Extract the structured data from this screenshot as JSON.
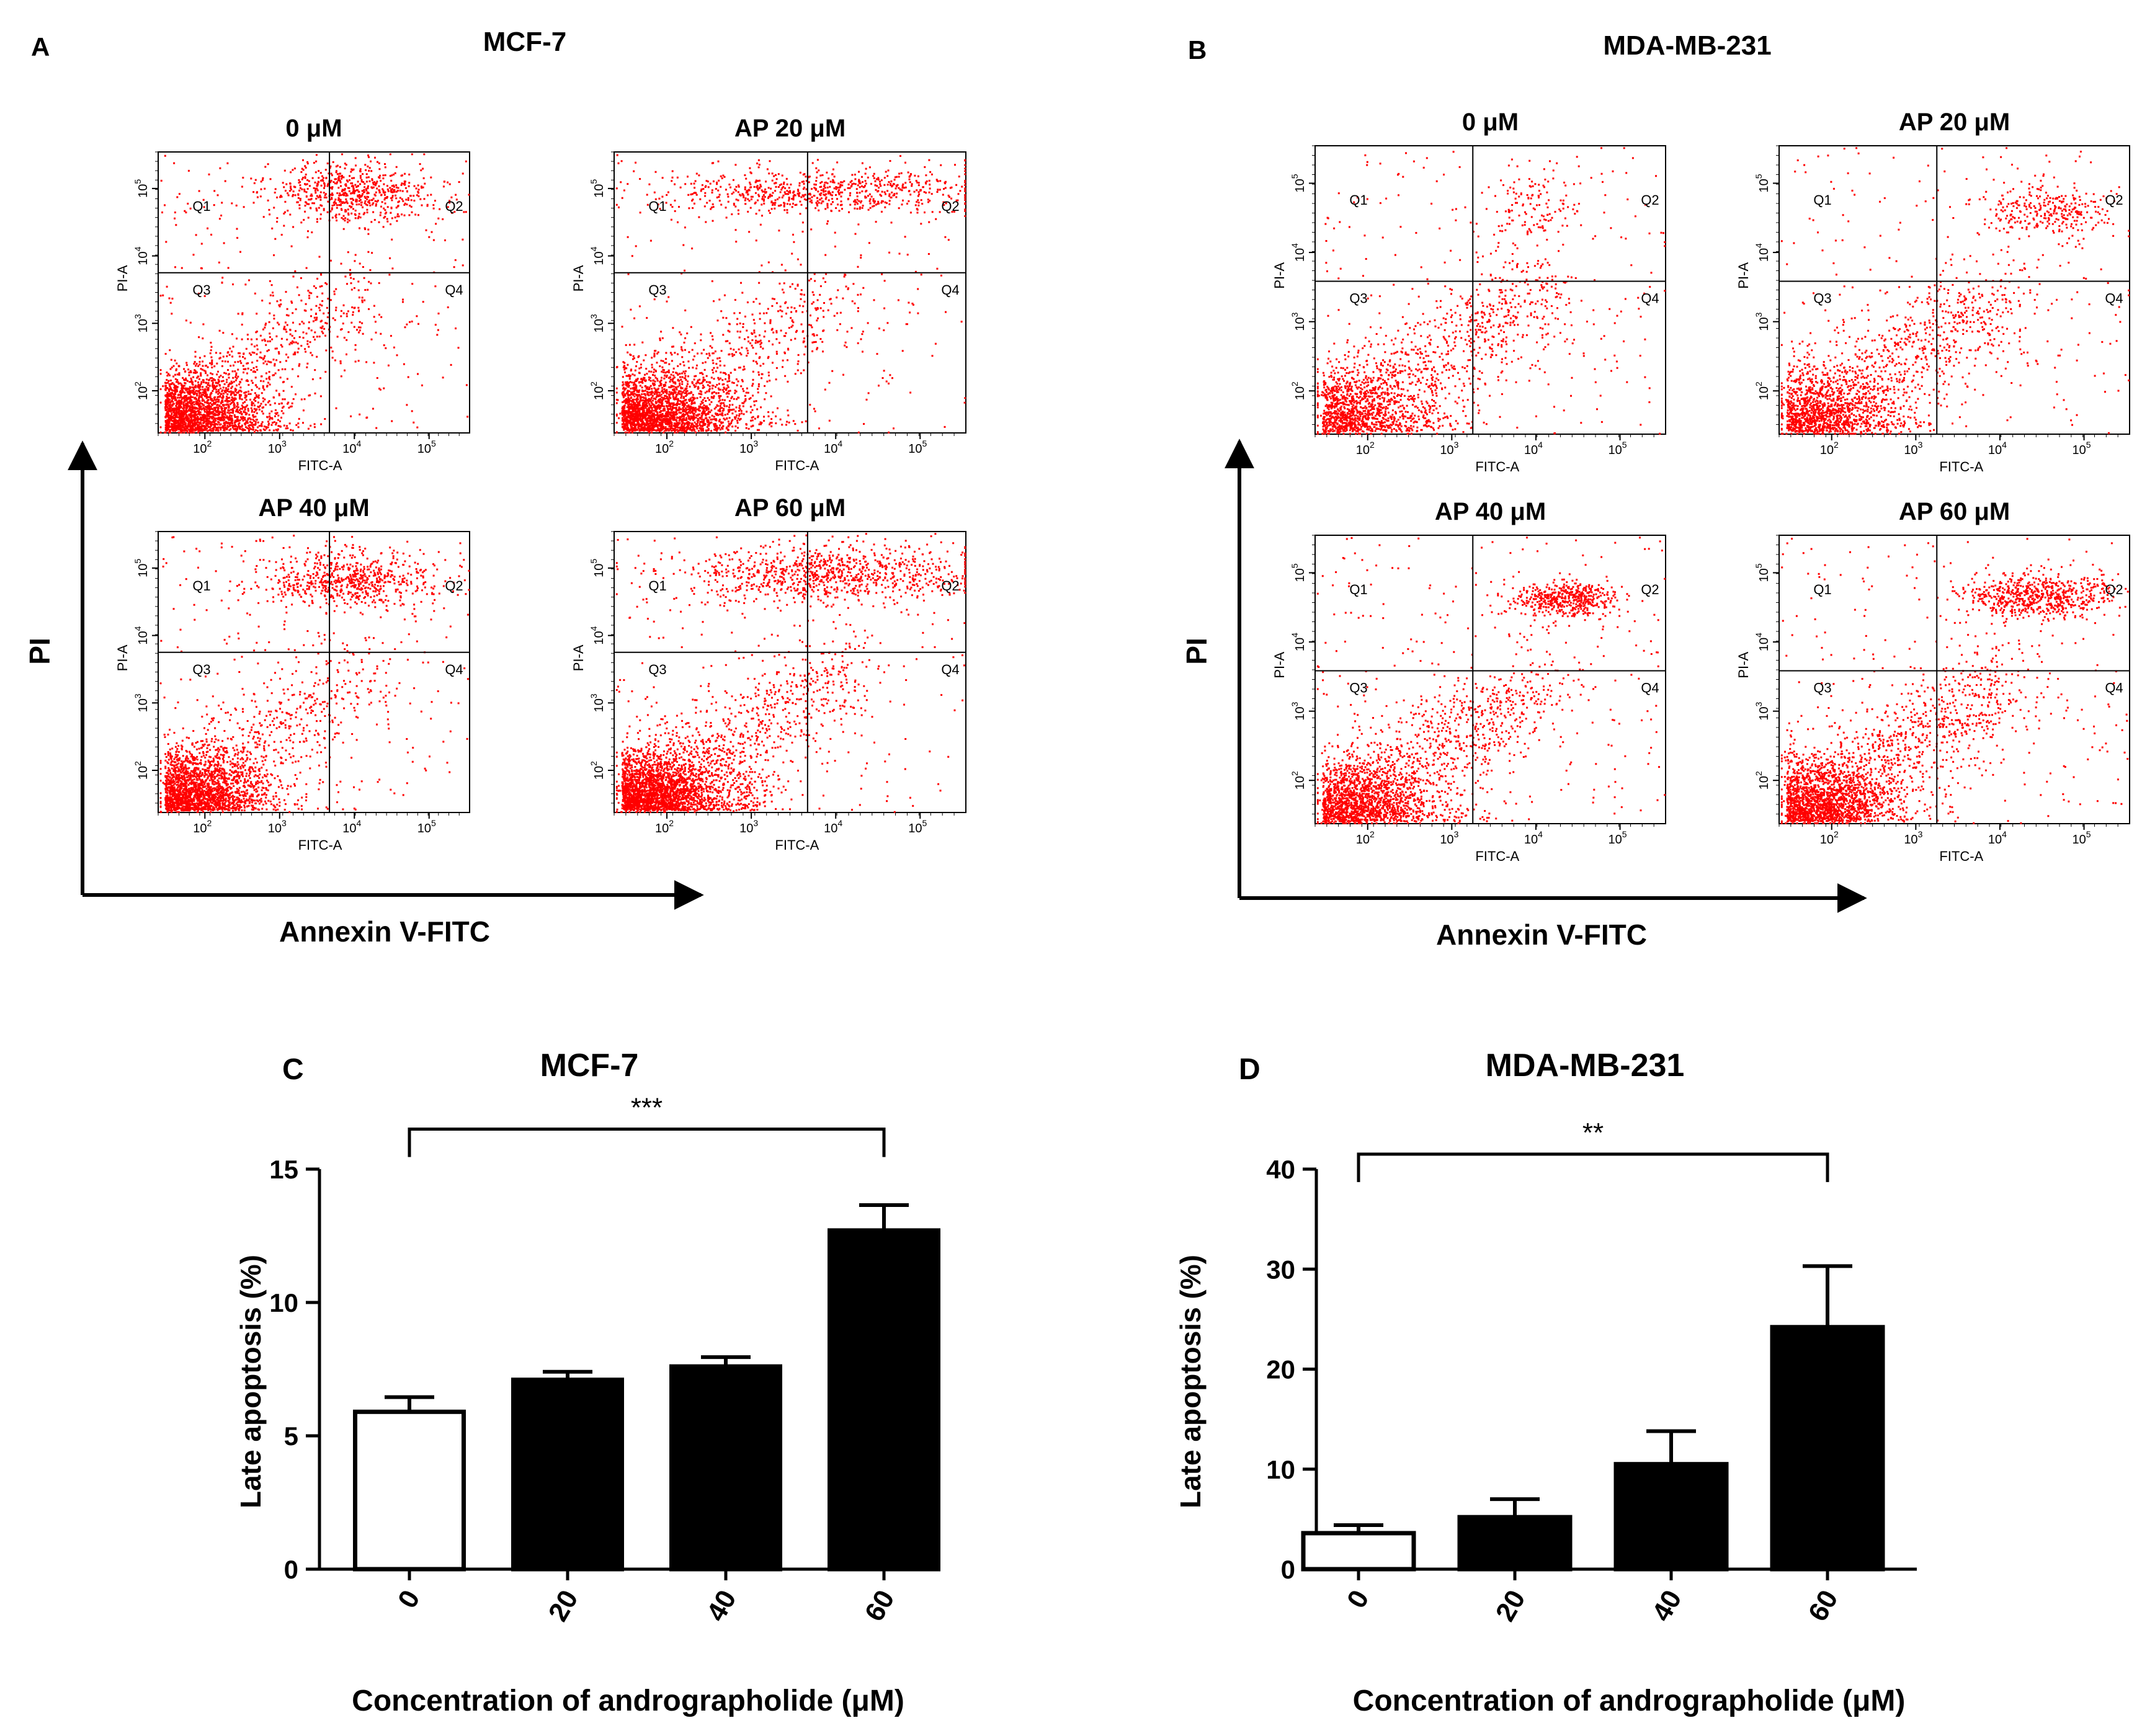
{
  "panels": {
    "A": {
      "letter": "A",
      "title": "MCF-7",
      "y_axis": "PI",
      "x_axis": "Annexin V-FITC"
    },
    "B": {
      "letter": "B",
      "title": "MDA-MB-231",
      "y_axis": "PI",
      "x_axis": "Annexin V-FITC"
    }
  },
  "flow": {
    "color": "#ff0000",
    "x_label": "FITC-A",
    "y_label": "PI-A",
    "tick_exponents": [
      "2",
      "3",
      "4",
      "5"
    ],
    "quadrants": [
      "Q1",
      "Q2",
      "Q3",
      "Q4"
    ],
    "A": [
      {
        "title": "0 μM",
        "gate_x": 0.55,
        "gate_y": 0.43
      },
      {
        "title": "AP 20 μM",
        "gate_x": 0.55,
        "gate_y": 0.43
      },
      {
        "title": "AP 40 μM",
        "gate_x": 0.55,
        "gate_y": 0.43
      },
      {
        "title": "AP 60 μM",
        "gate_x": 0.55,
        "gate_y": 0.43
      }
    ],
    "B": [
      {
        "title": "0 μM",
        "gate_x": 0.45,
        "gate_y": 0.47
      },
      {
        "title": "AP 20 μM",
        "gate_x": 0.45,
        "gate_y": 0.47
      },
      {
        "title": "AP 40 μM",
        "gate_x": 0.45,
        "gate_y": 0.47
      },
      {
        "title": "AP 60 μM",
        "gate_x": 0.45,
        "gate_y": 0.47
      }
    ]
  },
  "chart_data": [
    {
      "type": "bar",
      "panel": "C",
      "title": "MCF-7",
      "categories": [
        "0",
        "20",
        "40",
        "60"
      ],
      "values": [
        5.9,
        7.1,
        7.6,
        12.7
      ],
      "errors": [
        0.55,
        0.3,
        0.35,
        0.95
      ],
      "fills": [
        "#ffffff",
        "#000000",
        "#000000",
        "#000000"
      ],
      "ylim": [
        0,
        15
      ],
      "yticks": [
        0,
        5,
        10,
        15
      ],
      "ytick_labels": [
        "0",
        "5",
        "10",
        "15"
      ],
      "ylabel": "Late apoptosis (%)",
      "xlabel": "Concentration of andrographolide (μM)",
      "significance": {
        "from": 0,
        "to": 3,
        "label": "***",
        "level": 16.5
      }
    },
    {
      "type": "bar",
      "panel": "D",
      "title": "MDA-MB-231",
      "categories": [
        "0",
        "20",
        "40",
        "60"
      ],
      "values": [
        3.6,
        5.2,
        10.5,
        24.2
      ],
      "errors": [
        0.8,
        1.8,
        3.3,
        6.1
      ],
      "fills": [
        "#ffffff",
        "#000000",
        "#000000",
        "#000000"
      ],
      "ylim": [
        0,
        40
      ],
      "yticks": [
        0,
        10,
        20,
        30,
        40
      ],
      "ytick_labels": [
        "0",
        "10",
        "20",
        "30",
        "40"
      ],
      "ylabel": "Late apoptosis (%)",
      "xlabel": "Concentration of andrographolide (μM)",
      "significance": {
        "from": 0,
        "to": 3,
        "label": "**",
        "level": 41.5
      }
    }
  ]
}
